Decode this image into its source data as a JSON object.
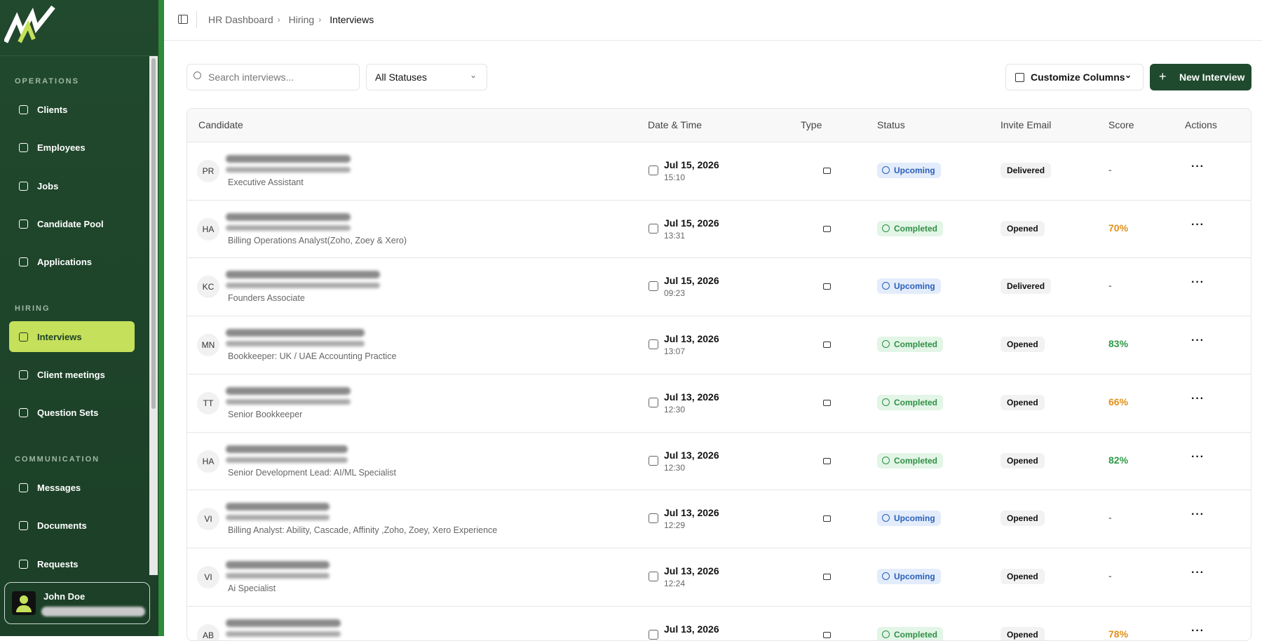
{
  "breadcrumb": [
    "HR Dashboard",
    "Hiring",
    "Interviews"
  ],
  "sidebar": {
    "sections": [
      {
        "title": "OPERATIONS",
        "items": [
          "Clients",
          "Employees",
          "Jobs",
          "Candidate Pool",
          "Applications"
        ]
      },
      {
        "title": "HIRING",
        "items": [
          "Interviews",
          "Client meetings",
          "Question Sets"
        ]
      },
      {
        "title": "COMMUNICATION",
        "items": [
          "Messages",
          "Documents",
          "Requests"
        ]
      }
    ],
    "active": "Interviews",
    "user": "John Doe"
  },
  "toolbar": {
    "search_placeholder": "Search interviews...",
    "status_filter": "All Statuses",
    "customize": "Customize Columns",
    "new": "New Interview"
  },
  "table": {
    "columns": [
      "Candidate",
      "Date & Time",
      "Type",
      "Status",
      "Invite Email",
      "Score",
      "Actions"
    ],
    "rows": [
      {
        "initials": "PR",
        "role": "Executive Assistant",
        "date": "Jul 15, 2026",
        "time": "15:10",
        "status": "Upcoming",
        "invite": "Delivered",
        "score": "-",
        "score_tone": "muted"
      },
      {
        "initials": "HA",
        "role": "Billing Operations Analyst(Zoho, Zoey & Xero)",
        "date": "Jul 15, 2026",
        "time": "13:31",
        "status": "Completed",
        "invite": "Opened",
        "score": "70%",
        "score_tone": "warning"
      },
      {
        "initials": "KC",
        "role": "Founders Associate",
        "date": "Jul 15, 2026",
        "time": "09:23",
        "status": "Upcoming",
        "invite": "Delivered",
        "score": "-",
        "score_tone": "muted"
      },
      {
        "initials": "MN",
        "role": "Bookkeeper: UK / UAE Accounting Practice",
        "date": "Jul 13, 2026",
        "time": "13:07",
        "status": "Completed",
        "invite": "Opened",
        "score": "83%",
        "score_tone": "good"
      },
      {
        "initials": "TT",
        "role": "Senior Bookkeeper",
        "date": "Jul 13, 2026",
        "time": "12:30",
        "status": "Completed",
        "invite": "Opened",
        "score": "66%",
        "score_tone": "warning"
      },
      {
        "initials": "HA",
        "role": "Senior Development Lead: AI/ML Specialist",
        "date": "Jul 13, 2026",
        "time": "12:30",
        "status": "Completed",
        "invite": "Opened",
        "score": "82%",
        "score_tone": "good"
      },
      {
        "initials": "VI",
        "role": "Billing Analyst: Ability, Cascade, Affinity ,Zoho, Zoey, Xero Experience",
        "date": "Jul 13, 2026",
        "time": "12:29",
        "status": "Upcoming",
        "invite": "Opened",
        "score": "-",
        "score_tone": "muted"
      },
      {
        "initials": "VI",
        "role": "Ai Specialist",
        "date": "Jul 13, 2026",
        "time": "12:24",
        "status": "Upcoming",
        "invite": "Opened",
        "score": "-",
        "score_tone": "muted"
      },
      {
        "initials": "AB",
        "date": "Jul 13, 2026",
        "status": "Completed",
        "invite": "Opened",
        "score": "78%",
        "score_tone": "warning"
      }
    ]
  }
}
